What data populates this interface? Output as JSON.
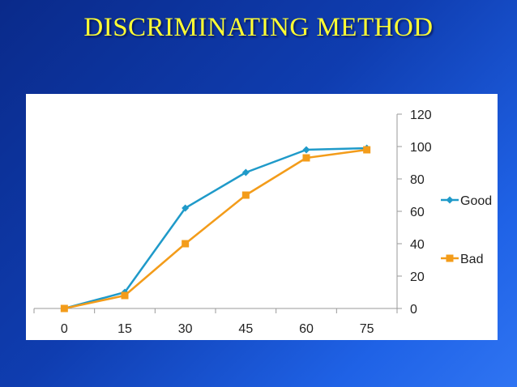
{
  "slide": {
    "title": "DISCRIMINATING METHOD"
  },
  "colors": {
    "title": "#ffff33",
    "good": "#1f9ac9",
    "bad": "#f39c1a",
    "axis": "#9a9a9a"
  },
  "chart_data": {
    "type": "line",
    "title": "",
    "xlabel": "",
    "ylabel": "",
    "categories": [
      "0",
      "15",
      "30",
      "45",
      "60",
      "75"
    ],
    "x": [
      0,
      15,
      30,
      45,
      60,
      75
    ],
    "ylim": [
      0,
      120
    ],
    "yticks": [
      0,
      20,
      40,
      60,
      80,
      100,
      120
    ],
    "y_axis_side": "right",
    "grid": false,
    "legend_position": "right",
    "series": [
      {
        "name": "Good",
        "color": "#1f9ac9",
        "marker": "diamond",
        "values": [
          0,
          10,
          62,
          84,
          98,
          99
        ]
      },
      {
        "name": "Bad",
        "color": "#f39c1a",
        "marker": "square",
        "values": [
          0,
          8,
          40,
          70,
          93,
          98
        ]
      }
    ]
  }
}
